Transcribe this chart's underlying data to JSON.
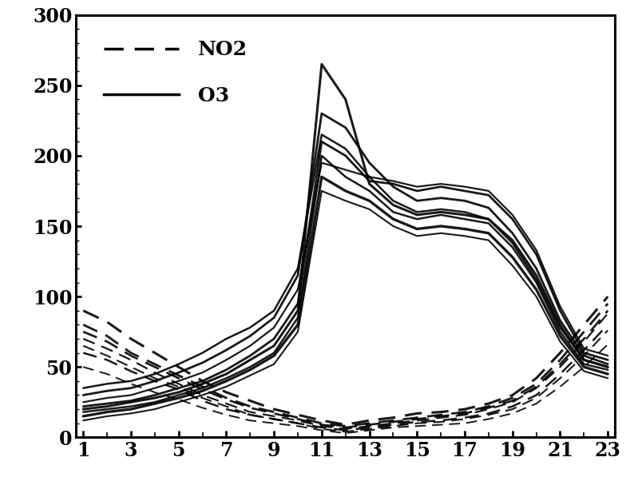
{
  "title": "",
  "xlim": [
    1,
    23
  ],
  "ylim": [
    0,
    300
  ],
  "xticks": [
    1,
    3,
    5,
    7,
    9,
    11,
    13,
    15,
    17,
    19,
    21,
    23
  ],
  "yticks": [
    0,
    50,
    100,
    150,
    200,
    250,
    300
  ],
  "background_color": "#ffffff",
  "line_color": "#000000",
  "hours": [
    1,
    2,
    3,
    4,
    5,
    6,
    7,
    8,
    9,
    10,
    11,
    12,
    13,
    14,
    15,
    16,
    17,
    18,
    19,
    20,
    21,
    22,
    23
  ],
  "o3_series": [
    [
      20,
      22,
      25,
      28,
      32,
      38,
      45,
      55,
      65,
      90,
      265,
      240,
      180,
      165,
      158,
      160,
      158,
      155,
      140,
      115,
      80,
      55,
      50
    ],
    [
      18,
      20,
      22,
      25,
      30,
      35,
      42,
      50,
      60,
      85,
      200,
      185,
      175,
      160,
      155,
      158,
      155,
      152,
      135,
      110,
      75,
      52,
      48
    ],
    [
      22,
      24,
      26,
      30,
      35,
      40,
      48,
      58,
      70,
      95,
      210,
      200,
      182,
      180,
      175,
      178,
      175,
      172,
      155,
      130,
      90,
      60,
      55
    ],
    [
      25,
      28,
      30,
      35,
      40,
      46,
      55,
      65,
      78,
      105,
      195,
      190,
      185,
      182,
      178,
      180,
      178,
      175,
      158,
      133,
      93,
      63,
      58
    ],
    [
      15,
      18,
      20,
      24,
      28,
      33,
      40,
      48,
      58,
      80,
      185,
      175,
      168,
      155,
      148,
      150,
      148,
      145,
      128,
      105,
      72,
      50,
      45
    ],
    [
      12,
      15,
      17,
      20,
      25,
      30,
      36,
      44,
      52,
      75,
      175,
      168,
      162,
      150,
      143,
      145,
      143,
      140,
      122,
      100,
      68,
      47,
      42
    ],
    [
      30,
      33,
      35,
      40,
      46,
      53,
      62,
      72,
      85,
      115,
      230,
      220,
      195,
      178,
      168,
      170,
      168,
      163,
      145,
      120,
      83,
      58,
      52
    ],
    [
      35,
      38,
      40,
      45,
      52,
      60,
      70,
      78,
      90,
      120,
      215,
      205,
      185,
      168,
      160,
      162,
      160,
      155,
      138,
      112,
      78,
      55,
      50
    ]
  ],
  "no2_series": [
    [
      80,
      72,
      60,
      52,
      44,
      36,
      28,
      22,
      18,
      14,
      10,
      8,
      10,
      12,
      14,
      16,
      18,
      22,
      28,
      38,
      55,
      75,
      95
    ],
    [
      70,
      63,
      55,
      46,
      38,
      30,
      24,
      18,
      15,
      12,
      8,
      6,
      8,
      10,
      12,
      14,
      16,
      20,
      25,
      35,
      50,
      68,
      88
    ],
    [
      60,
      55,
      47,
      40,
      34,
      26,
      20,
      16,
      13,
      10,
      7,
      5,
      7,
      9,
      11,
      12,
      14,
      17,
      22,
      30,
      45,
      62,
      80
    ],
    [
      90,
      82,
      70,
      60,
      50,
      40,
      32,
      26,
      20,
      16,
      12,
      9,
      12,
      14,
      17,
      18,
      20,
      24,
      30,
      42,
      60,
      80,
      100
    ],
    [
      65,
      58,
      50,
      42,
      36,
      28,
      22,
      16,
      13,
      10,
      6,
      4,
      6,
      8,
      10,
      11,
      13,
      16,
      20,
      28,
      42,
      58,
      76
    ],
    [
      50,
      45,
      38,
      32,
      27,
      21,
      16,
      12,
      10,
      8,
      5,
      3,
      5,
      7,
      8,
      9,
      10,
      13,
      17,
      24,
      36,
      50,
      66
    ],
    [
      75,
      68,
      58,
      50,
      42,
      34,
      27,
      21,
      17,
      13,
      9,
      7,
      9,
      11,
      13,
      15,
      17,
      21,
      26,
      36,
      52,
      70,
      90
    ]
  ]
}
